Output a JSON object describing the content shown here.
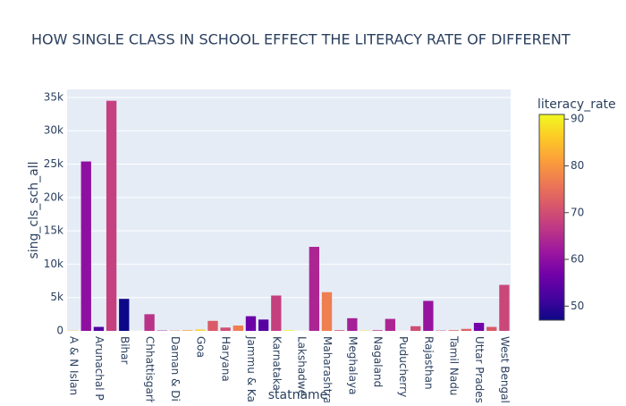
{
  "chart_data": {
    "type": "bar",
    "title": "HOW SINGLE CLASS IN SCHOOL EFFECT THE LITERACY RATE OF DIFFERENT",
    "x_label": "statname",
    "y_label": "sing_cls_sch_all",
    "categories": [
      "A & N Islan",
      null,
      "Arunachal P",
      null,
      "Bihar",
      null,
      "Chhattisgarh",
      null,
      "Daman & Di",
      null,
      "Goa",
      null,
      "Haryana",
      null,
      "Jammu & Ka",
      null,
      "Karnataka",
      null,
      "Lakshadwe",
      null,
      "Maharashtra",
      null,
      "Meghalaya",
      null,
      "Nagaland",
      null,
      "Puducherry",
      null,
      "Rajasthan",
      null,
      "Tamil Nadu",
      null,
      "Uttar Prades",
      null,
      "West Bengal"
    ],
    "values": [
      50,
      25400,
      600,
      34500,
      4800,
      10,
      2500,
      50,
      50,
      100,
      200,
      1500,
      500,
      800,
      2200,
      1700,
      5300,
      100,
      10,
      12600,
      5800,
      100,
      1900,
      50,
      100,
      1800,
      10,
      700,
      4500,
      50,
      100,
      300,
      1200,
      600,
      6900
    ],
    "color_values": [
      86,
      60,
      53,
      68,
      47,
      82,
      66,
      60,
      78,
      82,
      87,
      72,
      70,
      77,
      56,
      54,
      68,
      91,
      87,
      64,
      77,
      71,
      63,
      89,
      67,
      64,
      81,
      70,
      61,
      69,
      74,
      73,
      57,
      72,
      69
    ],
    "colorbar_title": "literacy_rate",
    "colorscale": [
      "#0d0887",
      "#46039f",
      "#7201a8",
      "#9c179e",
      "#bd3786",
      "#d8576b",
      "#ed7953",
      "#fb9f3a",
      "#fdca26",
      "#f0f921"
    ],
    "clim": [
      47,
      91
    ],
    "cticks": [
      50,
      60,
      70,
      80,
      90
    ],
    "ylim": [
      0,
      36200
    ],
    "yticks": [
      0,
      {
        "value": 5000,
        "label": "5k"
      },
      {
        "value": 10000,
        "label": "10k"
      },
      {
        "value": 15000,
        "label": "15k"
      },
      {
        "value": 20000,
        "label": "20k"
      },
      {
        "value": 25000,
        "label": "25k"
      },
      {
        "value": 30000,
        "label": "30k"
      },
      {
        "value": 35000,
        "label": "35k"
      }
    ],
    "grid": true
  }
}
